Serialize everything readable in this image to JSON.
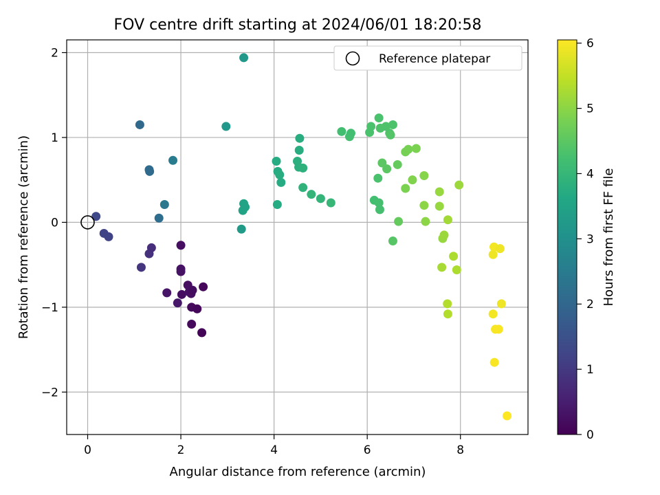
{
  "chart_data": {
    "type": "scatter",
    "title": "FOV centre drift starting at 2024/06/01 18:20:58",
    "xlabel": "Angular distance from reference (arcmin)",
    "ylabel": "Rotation from reference (arcmin)",
    "xlim": [
      -0.45,
      9.45
    ],
    "ylim": [
      -2.5,
      2.15
    ],
    "xticks": [
      0,
      2,
      4,
      6,
      8
    ],
    "yticks": [
      -2,
      -1,
      0,
      1,
      2
    ],
    "grid": true,
    "legend": {
      "placement": "top-right",
      "entries": [
        "Reference platepar"
      ]
    },
    "reference_point": {
      "x": 0,
      "y": 0
    },
    "colorbar": {
      "label": "Hours from first FF file",
      "colormap": "viridis",
      "range": [
        0,
        6.05
      ],
      "ticks": [
        0,
        1,
        2,
        3,
        4,
        5,
        6
      ]
    },
    "colormap_stops": [
      "#440154",
      "#482475",
      "#414487",
      "#355f8d",
      "#2a788e",
      "#21918c",
      "#22a884",
      "#44bf70",
      "#7ad151",
      "#bddf26",
      "#fde725"
    ],
    "points": [
      {
        "x": 0.18,
        "y": 0.07,
        "h": 1.3
      },
      {
        "x": 0.35,
        "y": -0.13,
        "h": 1.2
      },
      {
        "x": 0.45,
        "y": -0.17,
        "h": 1.2
      },
      {
        "x": 1.15,
        "y": -0.53,
        "h": 0.9
      },
      {
        "x": 1.32,
        "y": -0.37,
        "h": 0.85
      },
      {
        "x": 1.37,
        "y": -0.3,
        "h": 0.8
      },
      {
        "x": 1.12,
        "y": 1.15,
        "h": 2.05
      },
      {
        "x": 1.32,
        "y": 0.62,
        "h": 2.1
      },
      {
        "x": 1.33,
        "y": 0.6,
        "h": 2.1
      },
      {
        "x": 1.53,
        "y": 0.05,
        "h": 2.15
      },
      {
        "x": 1.65,
        "y": 0.21,
        "h": 2.4
      },
      {
        "x": 1.83,
        "y": 0.73,
        "h": 2.5
      },
      {
        "x": 1.7,
        "y": -0.83,
        "h": 0.35
      },
      {
        "x": 1.93,
        "y": -0.95,
        "h": 0.4
      },
      {
        "x": 2.0,
        "y": -0.27,
        "h": 0.25
      },
      {
        "x": 2.0,
        "y": -0.55,
        "h": 0.3
      },
      {
        "x": 2.0,
        "y": -0.58,
        "h": 0.3
      },
      {
        "x": 2.02,
        "y": -0.85,
        "h": 0.2
      },
      {
        "x": 2.15,
        "y": -0.74,
        "h": 0.25
      },
      {
        "x": 2.18,
        "y": -0.82,
        "h": 0.3
      },
      {
        "x": 2.22,
        "y": -0.84,
        "h": 0.25
      },
      {
        "x": 2.25,
        "y": -0.8,
        "h": 0.2
      },
      {
        "x": 2.23,
        "y": -1.0,
        "h": 0.15
      },
      {
        "x": 2.35,
        "y": -1.02,
        "h": 0.1
      },
      {
        "x": 2.23,
        "y": -1.2,
        "h": 0.15
      },
      {
        "x": 2.45,
        "y": -1.3,
        "h": 0.05
      },
      {
        "x": 2.48,
        "y": -0.76,
        "h": 0.1
      },
      {
        "x": 2.97,
        "y": 1.13,
        "h": 3.2
      },
      {
        "x": 3.3,
        "y": -0.08,
        "h": 3.3
      },
      {
        "x": 3.33,
        "y": 0.14,
        "h": 3.5
      },
      {
        "x": 3.35,
        "y": 0.22,
        "h": 3.5
      },
      {
        "x": 3.38,
        "y": 0.18,
        "h": 3.5
      },
      {
        "x": 3.35,
        "y": 1.94,
        "h": 3.2
      },
      {
        "x": 4.05,
        "y": 0.72,
        "h": 3.7
      },
      {
        "x": 4.08,
        "y": 0.6,
        "h": 3.7
      },
      {
        "x": 4.12,
        "y": 0.56,
        "h": 3.75
      },
      {
        "x": 4.15,
        "y": 0.47,
        "h": 3.7
      },
      {
        "x": 4.07,
        "y": 0.21,
        "h": 3.7
      },
      {
        "x": 4.5,
        "y": 0.72,
        "h": 3.8
      },
      {
        "x": 4.53,
        "y": 0.65,
        "h": 3.8
      },
      {
        "x": 4.62,
        "y": 0.64,
        "h": 3.85
      },
      {
        "x": 4.54,
        "y": 0.85,
        "h": 3.75
      },
      {
        "x": 4.55,
        "y": 0.99,
        "h": 3.75
      },
      {
        "x": 4.62,
        "y": 0.41,
        "h": 3.9
      },
      {
        "x": 4.8,
        "y": 0.33,
        "h": 3.95
      },
      {
        "x": 5.0,
        "y": 0.28,
        "h": 3.95
      },
      {
        "x": 5.22,
        "y": 0.23,
        "h": 4.0
      },
      {
        "x": 5.45,
        "y": 1.07,
        "h": 4.2
      },
      {
        "x": 5.62,
        "y": 1.01,
        "h": 4.25
      },
      {
        "x": 5.65,
        "y": 1.05,
        "h": 4.2
      },
      {
        "x": 6.05,
        "y": 1.06,
        "h": 4.3
      },
      {
        "x": 6.08,
        "y": 1.13,
        "h": 4.3
      },
      {
        "x": 6.25,
        "y": 1.23,
        "h": 4.3
      },
      {
        "x": 6.28,
        "y": 1.11,
        "h": 4.35
      },
      {
        "x": 6.4,
        "y": 1.13,
        "h": 4.35
      },
      {
        "x": 6.48,
        "y": 1.05,
        "h": 4.35
      },
      {
        "x": 6.5,
        "y": 1.03,
        "h": 4.4
      },
      {
        "x": 6.55,
        "y": 1.15,
        "h": 4.35
      },
      {
        "x": 6.32,
        "y": 0.7,
        "h": 4.5
      },
      {
        "x": 6.42,
        "y": 0.63,
        "h": 4.5
      },
      {
        "x": 6.23,
        "y": 0.52,
        "h": 4.3
      },
      {
        "x": 6.15,
        "y": 0.26,
        "h": 4.2
      },
      {
        "x": 6.25,
        "y": 0.23,
        "h": 4.25
      },
      {
        "x": 6.27,
        "y": 0.15,
        "h": 4.25
      },
      {
        "x": 6.55,
        "y": -0.22,
        "h": 4.45
      },
      {
        "x": 6.65,
        "y": 0.68,
        "h": 4.6
      },
      {
        "x": 6.67,
        "y": 0.01,
        "h": 4.6
      },
      {
        "x": 6.82,
        "y": 0.83,
        "h": 4.8
      },
      {
        "x": 6.88,
        "y": 0.86,
        "h": 4.8
      },
      {
        "x": 7.05,
        "y": 0.87,
        "h": 4.85
      },
      {
        "x": 6.82,
        "y": 0.4,
        "h": 4.85
      },
      {
        "x": 6.97,
        "y": 0.5,
        "h": 4.9
      },
      {
        "x": 7.22,
        "y": 0.55,
        "h": 4.95
      },
      {
        "x": 7.22,
        "y": 0.2,
        "h": 5.0
      },
      {
        "x": 7.25,
        "y": 0.01,
        "h": 5.0
      },
      {
        "x": 7.55,
        "y": 0.36,
        "h": 5.1
      },
      {
        "x": 7.55,
        "y": 0.19,
        "h": 5.1
      },
      {
        "x": 7.62,
        "y": -0.19,
        "h": 5.1
      },
      {
        "x": 7.65,
        "y": -0.15,
        "h": 5.15
      },
      {
        "x": 7.73,
        "y": 0.03,
        "h": 5.2
      },
      {
        "x": 7.97,
        "y": 0.44,
        "h": 5.15
      },
      {
        "x": 7.6,
        "y": -0.53,
        "h": 5.25
      },
      {
        "x": 7.85,
        "y": -0.4,
        "h": 5.3
      },
      {
        "x": 7.92,
        "y": -0.56,
        "h": 5.3
      },
      {
        "x": 7.72,
        "y": -0.96,
        "h": 5.35
      },
      {
        "x": 7.73,
        "y": -1.08,
        "h": 5.35
      },
      {
        "x": 8.7,
        "y": -0.38,
        "h": 5.9
      },
      {
        "x": 8.72,
        "y": -0.29,
        "h": 5.95
      },
      {
        "x": 8.85,
        "y": -0.31,
        "h": 5.9
      },
      {
        "x": 8.88,
        "y": -0.96,
        "h": 5.9
      },
      {
        "x": 8.7,
        "y": -1.08,
        "h": 5.95
      },
      {
        "x": 8.75,
        "y": -1.26,
        "h": 6.0
      },
      {
        "x": 8.82,
        "y": -1.26,
        "h": 6.0
      },
      {
        "x": 8.73,
        "y": -1.65,
        "h": 6.0
      },
      {
        "x": 9.0,
        "y": -2.28,
        "h": 6.05
      }
    ]
  }
}
